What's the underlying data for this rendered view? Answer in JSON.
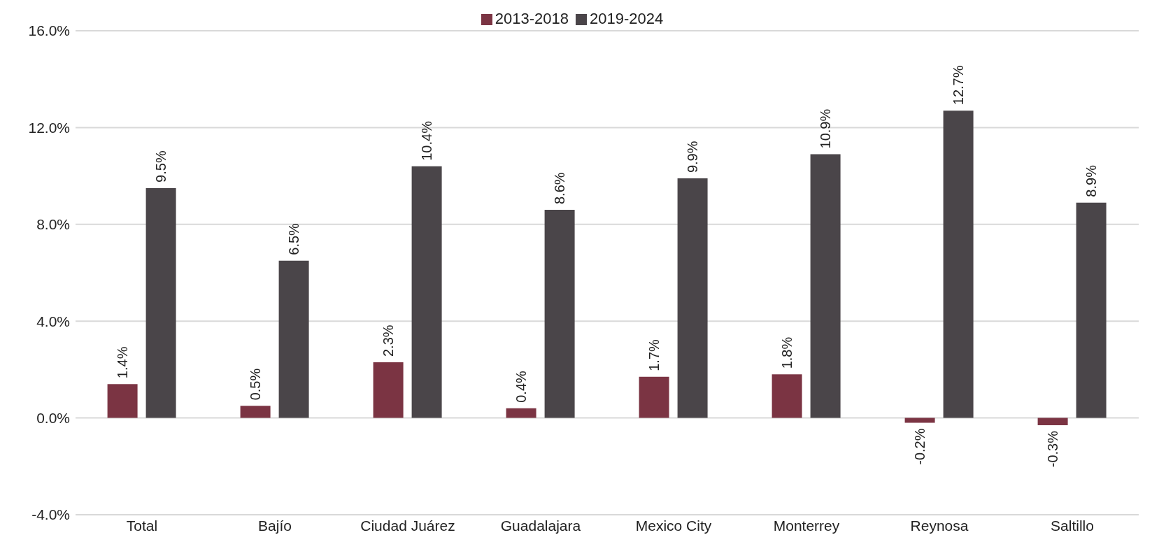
{
  "chart_data": {
    "type": "bar",
    "categories": [
      "Total",
      "Bajío",
      "Ciudad Juárez",
      "Guadalajara",
      "Mexico City",
      "Monterrey",
      "Reynosa",
      "Saltillo"
    ],
    "series": [
      {
        "name": "2013-2018",
        "color": "#7b3443",
        "values": [
          1.4,
          0.5,
          2.3,
          0.4,
          1.7,
          1.8,
          -0.2,
          -0.3
        ],
        "value_labels": [
          "1.4%",
          "0.5%",
          "2.3%",
          "0.4%",
          "1.7%",
          "1.8%",
          "-0.2%",
          "-0.3%"
        ]
      },
      {
        "name": "2019-2024",
        "color": "#4a4549",
        "values": [
          9.5,
          6.5,
          10.4,
          8.6,
          9.9,
          10.9,
          12.7,
          8.9
        ],
        "value_labels": [
          "9.5%",
          "6.5%",
          "10.4%",
          "8.6%",
          "9.9%",
          "10.9%",
          "12.7%",
          "8.9%"
        ]
      }
    ],
    "ylim": [
      -4,
      16
    ],
    "yticks": [
      {
        "value": -4,
        "label": "-4.0%"
      },
      {
        "value": 0,
        "label": "0.0%"
      },
      {
        "value": 4,
        "label": "4.0%"
      },
      {
        "value": 8,
        "label": "8.0%"
      },
      {
        "value": 12,
        "label": "12.0%"
      },
      {
        "value": 16,
        "label": "16.0%"
      }
    ],
    "grid": "y",
    "legend": "top"
  }
}
